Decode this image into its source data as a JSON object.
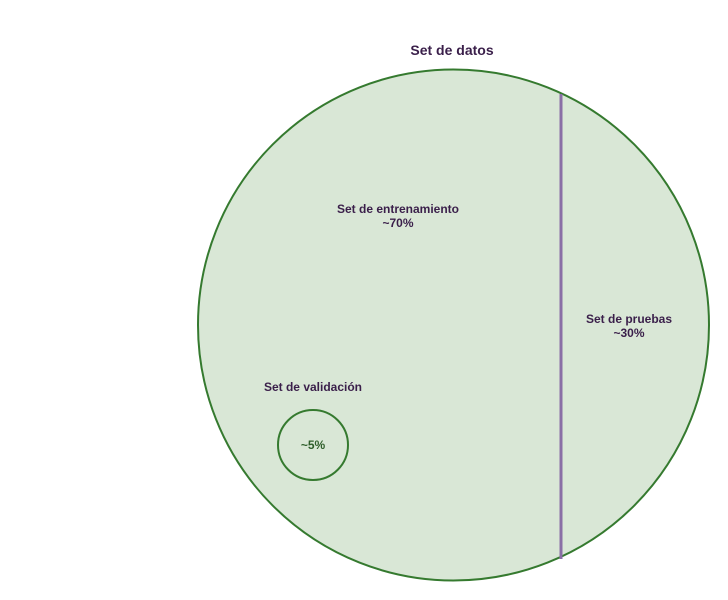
{
  "diagram": {
    "title": "Set de datos",
    "training": {
      "label": "Set de entrenamiento",
      "percent": "~70%"
    },
    "testing": {
      "label": "Set de pruebas",
      "percent": "~30%"
    },
    "validation": {
      "label": "Set de validación",
      "percent": "~5%"
    }
  },
  "colors": {
    "fill": "#d9e7d6",
    "outline": "#357a2f",
    "divider": "#8a6fa6",
    "text": "#3a1f4a",
    "inner_text": "#2e5e2a"
  }
}
